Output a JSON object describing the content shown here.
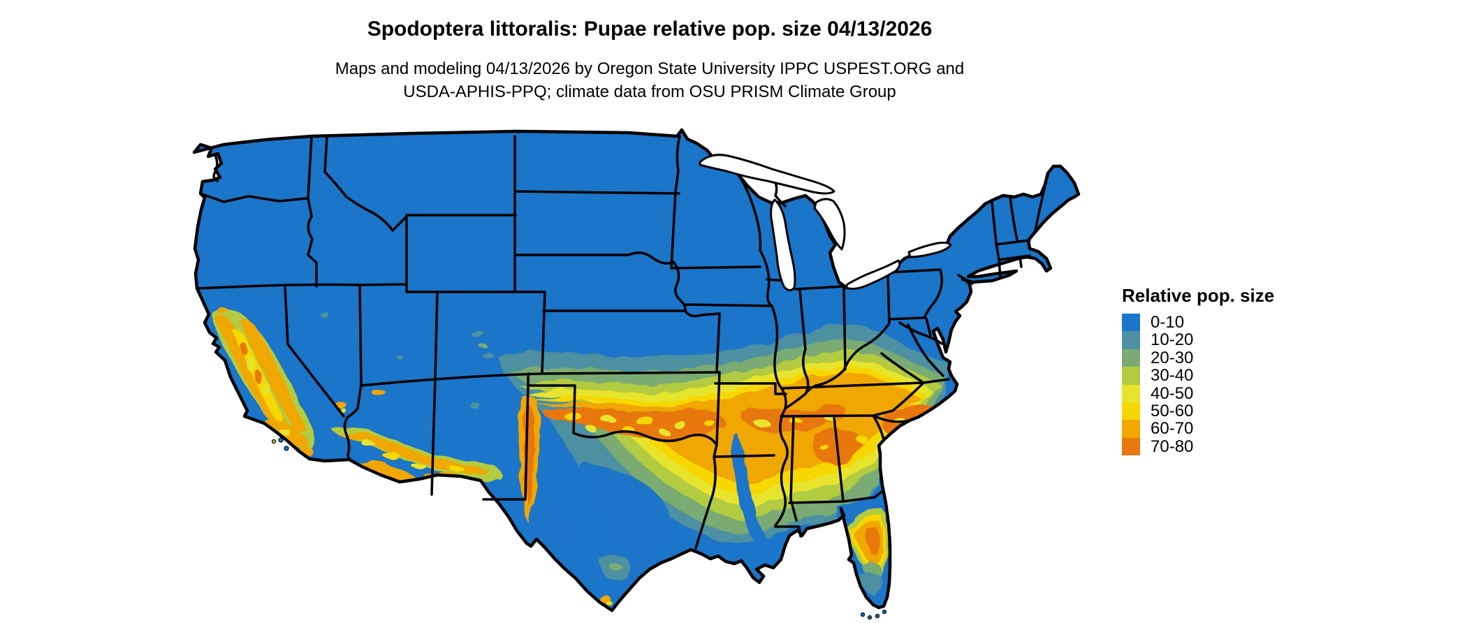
{
  "page": {
    "background_color": "#ffffff"
  },
  "header": {
    "title": "Spodoptera littoralis: Pupae relative pop. size 04/13/2026",
    "subtitle_line1": "Maps and modeling 04/13/2026 by Oregon State University IPPC USPEST.ORG and",
    "subtitle_line2": "USDA-APHIS-PPQ; climate data from OSU PRISM Climate Group"
  },
  "legend": {
    "title": "Relative pop. size",
    "items": [
      {
        "label": "0-10",
        "color": "#1B75C8"
      },
      {
        "label": "10-20",
        "color": "#4D90A2"
      },
      {
        "label": "20-30",
        "color": "#7AAB72"
      },
      {
        "label": "30-40",
        "color": "#B3CB3F"
      },
      {
        "label": "40-50",
        "color": "#E7E42E"
      },
      {
        "label": "50-60",
        "color": "#F7D700"
      },
      {
        "label": "60-70",
        "color": "#F0A700"
      },
      {
        "label": "70-80",
        "color": "#E87810"
      }
    ]
  },
  "map": {
    "border_color": "#000000",
    "water_color": "#ffffff",
    "base_band_label": "0-10"
  }
}
